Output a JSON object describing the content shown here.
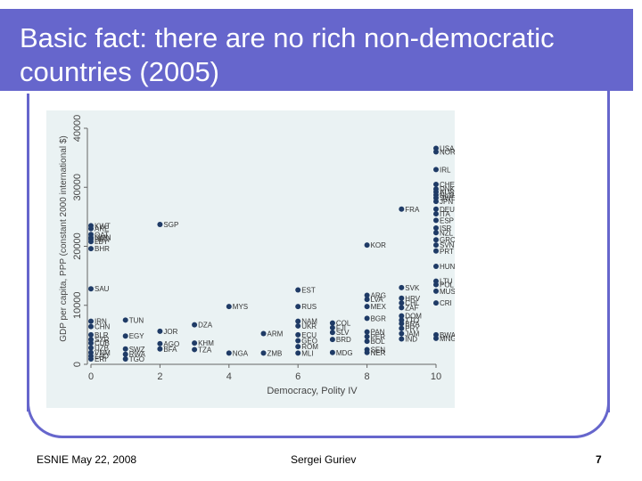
{
  "slide": {
    "title": "Basic fact: there are no rich non-democratic countries (2005)",
    "footer_left": "ESNIE May 22, 2008",
    "footer_center": "Sergei Guriev",
    "page_number": "7"
  },
  "colors": {
    "accent": "#6666cc",
    "point": "#1f3b66",
    "plot_bg": "#eaf2f3"
  },
  "chart_data": {
    "type": "scatter",
    "xlabel": "Democracy, Polity IV",
    "ylabel": "GDP per capita, PPP (constant 2000 international $)",
    "xlim": [
      0,
      10
    ],
    "ylim": [
      0,
      40000
    ],
    "x_ticks": [
      "0",
      "2",
      "4",
      "6",
      "8",
      "10"
    ],
    "y_ticks": [
      "0",
      "10000",
      "20000",
      "30000",
      "40000"
    ],
    "points": [
      {
        "x": 0,
        "y": 23500,
        "label": "KWT"
      },
      {
        "x": 0,
        "y": 23000,
        "label": "ARE"
      },
      {
        "x": 0,
        "y": 22000,
        "label": "QAT"
      },
      {
        "x": 0,
        "y": 21500,
        "label": "OMN"
      },
      {
        "x": 0,
        "y": 21200,
        "label": "BRN"
      },
      {
        "x": 0,
        "y": 20800,
        "label": "LBY"
      },
      {
        "x": 0,
        "y": 19600,
        "label": "BHR"
      },
      {
        "x": 0,
        "y": 12800,
        "label": "SAU"
      },
      {
        "x": 0,
        "y": 7300,
        "label": "IRN"
      },
      {
        "x": 0,
        "y": 6400,
        "label": "CHN"
      },
      {
        "x": 0,
        "y": 5000,
        "label": "BLR"
      },
      {
        "x": 0,
        "y": 4200,
        "label": "SYR"
      },
      {
        "x": 0,
        "y": 3600,
        "label": "CUB"
      },
      {
        "x": 0,
        "y": 2800,
        "label": "UZB"
      },
      {
        "x": 0,
        "y": 2000,
        "label": "VNM"
      },
      {
        "x": 0,
        "y": 1400,
        "label": "LAO"
      },
      {
        "x": 0,
        "y": 900,
        "label": "ERI"
      },
      {
        "x": 1,
        "y": 7500,
        "label": "TUN"
      },
      {
        "x": 1,
        "y": 4800,
        "label": "EGY"
      },
      {
        "x": 1,
        "y": 2600,
        "label": "SWZ"
      },
      {
        "x": 1,
        "y": 1700,
        "label": "RWA"
      },
      {
        "x": 1,
        "y": 900,
        "label": "TGO"
      },
      {
        "x": 2,
        "y": 23700,
        "label": "SGP"
      },
      {
        "x": 2,
        "y": 5600,
        "label": "JOR"
      },
      {
        "x": 2,
        "y": 3500,
        "label": "AGO"
      },
      {
        "x": 2,
        "y": 2600,
        "label": "BFA"
      },
      {
        "x": 3,
        "y": 6700,
        "label": "DZA"
      },
      {
        "x": 3,
        "y": 3600,
        "label": "KHM"
      },
      {
        "x": 3,
        "y": 2500,
        "label": "TZA"
      },
      {
        "x": 4,
        "y": 9800,
        "label": "MYS"
      },
      {
        "x": 4,
        "y": 1900,
        "label": "NGA"
      },
      {
        "x": 5,
        "y": 5200,
        "label": "ARM"
      },
      {
        "x": 5,
        "y": 1900,
        "label": "ZMB"
      },
      {
        "x": 6,
        "y": 12600,
        "label": "EST"
      },
      {
        "x": 6,
        "y": 9800,
        "label": "RUS"
      },
      {
        "x": 6,
        "y": 7300,
        "label": "NAM"
      },
      {
        "x": 6,
        "y": 6500,
        "label": "UKR"
      },
      {
        "x": 6,
        "y": 5000,
        "label": "ECU"
      },
      {
        "x": 6,
        "y": 4000,
        "label": "GEO"
      },
      {
        "x": 6,
        "y": 3000,
        "label": "ROM"
      },
      {
        "x": 6,
        "y": 1900,
        "label": "MLI"
      },
      {
        "x": 7,
        "y": 7000,
        "label": "COL"
      },
      {
        "x": 7,
        "y": 6200,
        "label": "FJI"
      },
      {
        "x": 7,
        "y": 5400,
        "label": "SLV"
      },
      {
        "x": 7,
        "y": 4200,
        "label": "BRD"
      },
      {
        "x": 7,
        "y": 2000,
        "label": "MDG"
      },
      {
        "x": 8,
        "y": 20200,
        "label": "KOR"
      },
      {
        "x": 8,
        "y": 11700,
        "label": "ARG"
      },
      {
        "x": 8,
        "y": 11000,
        "label": "LVA"
      },
      {
        "x": 8,
        "y": 9800,
        "label": "MEX"
      },
      {
        "x": 8,
        "y": 7800,
        "label": "BGR"
      },
      {
        "x": 8,
        "y": 5500,
        "label": "PAN"
      },
      {
        "x": 8,
        "y": 4700,
        "label": "PER"
      },
      {
        "x": 8,
        "y": 3900,
        "label": "BOL"
      },
      {
        "x": 8,
        "y": 2500,
        "label": "SEN"
      },
      {
        "x": 8,
        "y": 2000,
        "label": "NER"
      },
      {
        "x": 9,
        "y": 26300,
        "label": "FRA"
      },
      {
        "x": 9,
        "y": 13000,
        "label": "SVK"
      },
      {
        "x": 9,
        "y": 11200,
        "label": "HRV"
      },
      {
        "x": 9,
        "y": 10400,
        "label": "CHL"
      },
      {
        "x": 9,
        "y": 9600,
        "label": "ZAF"
      },
      {
        "x": 9,
        "y": 8200,
        "label": "DOM"
      },
      {
        "x": 9,
        "y": 7500,
        "label": "TTO"
      },
      {
        "x": 9,
        "y": 6900,
        "label": "BRA"
      },
      {
        "x": 9,
        "y": 6100,
        "label": "PRY"
      },
      {
        "x": 9,
        "y": 5200,
        "label": "JAM"
      },
      {
        "x": 9,
        "y": 4300,
        "label": "IND"
      },
      {
        "x": 10,
        "y": 36600,
        "label": "USA"
      },
      {
        "x": 10,
        "y": 36000,
        "label": "NOR"
      },
      {
        "x": 10,
        "y": 33000,
        "label": "IRL"
      },
      {
        "x": 10,
        "y": 30500,
        "label": "CHE"
      },
      {
        "x": 10,
        "y": 29700,
        "label": "DNK"
      },
      {
        "x": 10,
        "y": 29200,
        "label": "AUS"
      },
      {
        "x": 10,
        "y": 28700,
        "label": "NLD"
      },
      {
        "x": 10,
        "y": 28200,
        "label": "SWE"
      },
      {
        "x": 10,
        "y": 27600,
        "label": "JPN"
      },
      {
        "x": 10,
        "y": 26300,
        "label": "DEU"
      },
      {
        "x": 10,
        "y": 25500,
        "label": "ITA"
      },
      {
        "x": 10,
        "y": 24400,
        "label": "ESP"
      },
      {
        "x": 10,
        "y": 23100,
        "label": "ISR"
      },
      {
        "x": 10,
        "y": 22300,
        "label": "NZL"
      },
      {
        "x": 10,
        "y": 21100,
        "label": "GRC"
      },
      {
        "x": 10,
        "y": 20200,
        "label": "SVN"
      },
      {
        "x": 10,
        "y": 19200,
        "label": "PRT"
      },
      {
        "x": 10,
        "y": 16600,
        "label": "HUN"
      },
      {
        "x": 10,
        "y": 14100,
        "label": "LTU"
      },
      {
        "x": 10,
        "y": 13500,
        "label": "POL"
      },
      {
        "x": 10,
        "y": 12400,
        "label": "MUS"
      },
      {
        "x": 10,
        "y": 10400,
        "label": "CRI"
      },
      {
        "x": 10,
        "y": 5000,
        "label": "BWA"
      },
      {
        "x": 10,
        "y": 4400,
        "label": "MNG"
      }
    ]
  }
}
